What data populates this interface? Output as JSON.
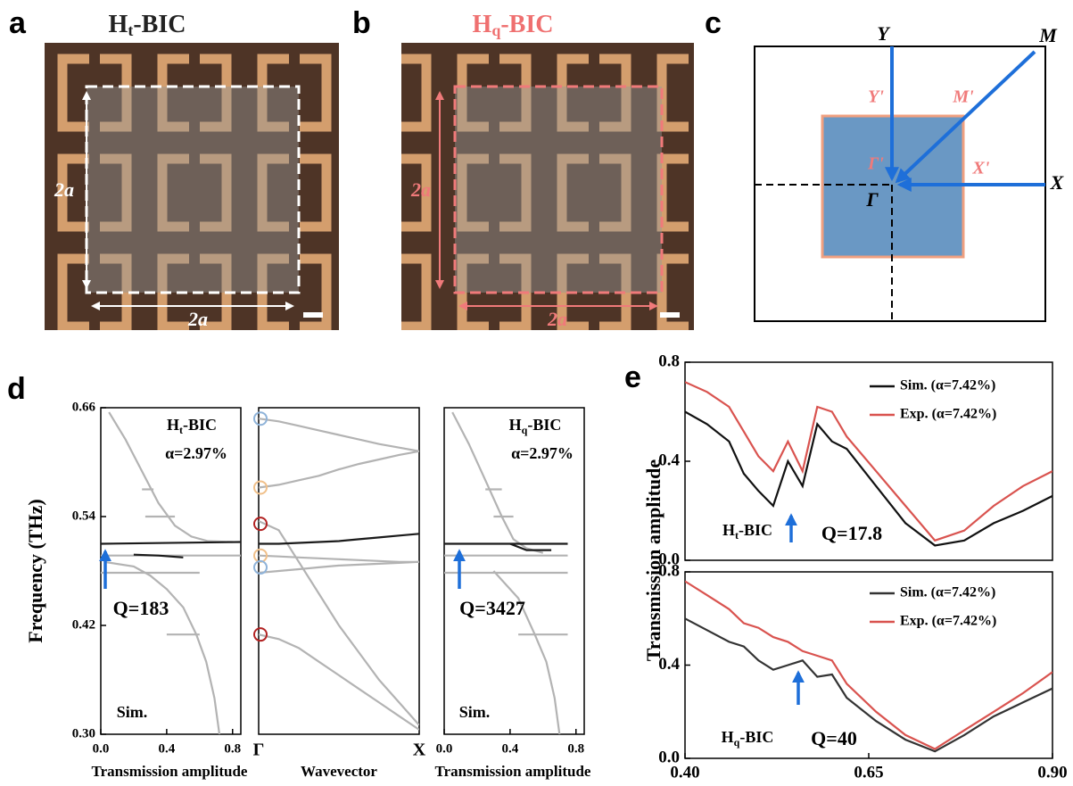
{
  "figure": {
    "panel_labels": [
      "a",
      "b",
      "c",
      "d",
      "e"
    ],
    "panel_a": {
      "title": [
        "H",
        "t",
        "-BIC"
      ],
      "dim_labels": [
        "2a",
        "2a"
      ]
    },
    "panel_b": {
      "title": [
        "H",
        "q",
        "-BIC"
      ],
      "dim_labels": [
        "2a",
        "2a"
      ]
    },
    "panel_c": {
      "points": [
        "Y",
        "M",
        "Y'",
        "M'",
        "Γ'",
        "X'",
        "X",
        "Γ"
      ]
    }
  },
  "chart_data": [
    {
      "type": "line",
      "ylabel": "Frequency (THz)",
      "xlabel": "Transmission amplitude",
      "xlim": [
        0,
        0.85
      ],
      "xticks": [
        {
          "value": 0,
          "label": "0.0"
        },
        0.4,
        0.8
      ],
      "ylim": [
        0.3,
        0.66
      ],
      "yticks": [
        {
          "value": 0.3,
          "label": "0.30"
        },
        0.42,
        0.54,
        0.66
      ],
      "title_parts": [
        "H",
        "t",
        "-BIC"
      ],
      "annotations": [
        "α=2.97%",
        "Q=183",
        "Sim."
      ],
      "series": [
        {
          "color": "#b3b3b3",
          "x": [
            0.05,
            0.15,
            0.25,
            0.35,
            0.45,
            0.55,
            0.65,
            0.8
          ],
          "values": [
            0.655,
            0.625,
            0.59,
            0.555,
            0.53,
            0.518,
            0.513,
            0.512
          ]
        },
        {
          "color": "#b3b3b3",
          "x": [
            0.25,
            0.32
          ],
          "values": [
            0.57,
            0.57
          ]
        },
        {
          "color": "#b3b3b3",
          "x": [
            0.27,
            0.45
          ],
          "values": [
            0.54,
            0.54
          ]
        },
        {
          "color": "#b3b3b3",
          "x": [
            0,
            0.85
          ],
          "values": [
            0.497,
            0.497
          ]
        },
        {
          "color": "#b3b3b3",
          "x": [
            0,
            0.6
          ],
          "values": [
            0.478,
            0.478
          ]
        },
        {
          "color": "#b3b3b3",
          "x": [
            0.4,
            0.6
          ],
          "values": [
            0.41,
            0.41
          ]
        },
        {
          "color": "#b3b3b3",
          "x": [
            0.02,
            0.2,
            0.3,
            0.4,
            0.5,
            0.58,
            0.64,
            0.69,
            0.72
          ],
          "values": [
            0.49,
            0.485,
            0.475,
            0.46,
            0.44,
            0.41,
            0.38,
            0.34,
            0.3
          ]
        },
        {
          "color": "#1a1a1a",
          "x": [
            0,
            0.85
          ],
          "values": [
            0.51,
            0.512
          ]
        },
        {
          "color": "#1a1a1a",
          "x": [
            0.2,
            0.35,
            0.5
          ],
          "values": [
            0.498,
            0.497,
            0.495
          ]
        }
      ]
    },
    {
      "type": "line",
      "xlabel": "Wavevector",
      "categories": [
        "Γ",
        null,
        null,
        null,
        null,
        null,
        null,
        null,
        "X"
      ],
      "ylim": [
        0.3,
        0.66
      ],
      "series": [
        {
          "color": "#b3b3b3",
          "values": [
            0.41,
            0.405,
            0.395,
            0.38,
            0.365,
            0.35,
            0.335,
            0.32,
            0.305
          ]
        },
        {
          "color": "#b3b3b3",
          "values": [
            0.535,
            0.525,
            0.49,
            0.455,
            0.42,
            0.39,
            0.36,
            0.335,
            0.31
          ]
        },
        {
          "color": "#b3b3b3",
          "values": [
            0.478,
            0.48,
            0.482,
            0.484,
            0.486,
            0.487,
            0.488,
            0.489,
            0.49
          ]
        },
        {
          "color": "#b3b3b3",
          "values": [
            0.497,
            0.496,
            0.495,
            0.494,
            0.493,
            0.492,
            0.491,
            0.49,
            0.49
          ]
        },
        {
          "color": "#b3b3b3",
          "values": [
            0.572,
            0.575,
            0.58,
            0.585,
            0.592,
            0.598,
            0.603,
            0.608,
            0.612
          ]
        },
        {
          "color": "#b3b3b3",
          "values": [
            0.648,
            0.645,
            0.64,
            0.635,
            0.63,
            0.625,
            0.62,
            0.616,
            0.612
          ]
        },
        {
          "color": "#1a1a1a",
          "values": [
            0.51,
            0.51,
            0.511,
            0.512,
            0.513,
            0.515,
            0.517,
            0.519,
            0.521
          ]
        }
      ],
      "markers": {
        "values": [
          0.648,
          0.572,
          0.532,
          0.497,
          0.484,
          0.41
        ],
        "colors": [
          "#8fb3d9",
          "#f0c08a",
          "#b22222",
          "#f0c08a",
          "#8fb3d9",
          "#b22222"
        ]
      }
    },
    {
      "type": "line",
      "xlabel": "Transmission amplitude",
      "xlim": [
        0,
        0.85
      ],
      "xticks": [
        {
          "value": 0,
          "label": "0.0"
        },
        0.4,
        0.8
      ],
      "ylim": [
        0.3,
        0.66
      ],
      "title_parts": [
        "H",
        "q",
        "-BIC"
      ],
      "annotations": [
        "α=2.97%",
        "Q=3427",
        "Sim."
      ],
      "series": [
        {
          "color": "#b3b3b3",
          "x": [
            0.05,
            0.15,
            0.25,
            0.35,
            0.42,
            0.5,
            0.6
          ],
          "values": [
            0.655,
            0.62,
            0.58,
            0.54,
            0.515,
            0.505,
            0.5
          ]
        },
        {
          "color": "#b3b3b3",
          "x": [
            0.25,
            0.35
          ],
          "values": [
            0.57,
            0.57
          ]
        },
        {
          "color": "#b3b3b3",
          "x": [
            0.3,
            0.42
          ],
          "values": [
            0.54,
            0.54
          ]
        },
        {
          "color": "#b3b3b3",
          "x": [
            0,
            0.75
          ],
          "values": [
            0.497,
            0.497
          ]
        },
        {
          "color": "#b3b3b3",
          "x": [
            0,
            0.75
          ],
          "values": [
            0.478,
            0.478
          ]
        },
        {
          "color": "#b3b3b3",
          "x": [
            0.45,
            0.75
          ],
          "values": [
            0.41,
            0.41
          ]
        },
        {
          "color": "#b3b3b3",
          "x": [
            0.3,
            0.45,
            0.55,
            0.62,
            0.67,
            0.7
          ],
          "values": [
            0.48,
            0.45,
            0.41,
            0.38,
            0.34,
            0.3
          ]
        },
        {
          "color": "#1a1a1a",
          "x": [
            0,
            0.4,
            0.75
          ],
          "values": [
            0.51,
            0.51,
            0.51
          ]
        },
        {
          "color": "#1a1a1a",
          "x": [
            0.4,
            0.5,
            0.65
          ],
          "values": [
            0.51,
            0.503,
            0.503
          ]
        }
      ]
    },
    {
      "type": "line",
      "ylabel": "Transmission amplitude",
      "xlim": [
        0.4,
        0.9
      ],
      "ylim": [
        0,
        0.8
      ],
      "yticks": [
        {
          "value": 0,
          "label": "0.0"
        },
        0.4,
        0.8
      ],
      "title_parts": [
        "H",
        "t",
        "-BIC"
      ],
      "annotations": [
        "Q=17.8"
      ],
      "series": [
        {
          "name": "Sim. (α=7.42%)",
          "color": "#111111",
          "x": [
            0.4,
            0.43,
            0.46,
            0.48,
            0.5,
            0.52,
            0.54,
            0.56,
            0.58,
            0.6,
            0.62,
            0.66,
            0.7,
            0.74,
            0.78,
            0.82,
            0.86,
            0.9
          ],
          "values": [
            0.6,
            0.55,
            0.48,
            0.35,
            0.28,
            0.22,
            0.4,
            0.3,
            0.55,
            0.48,
            0.45,
            0.3,
            0.15,
            0.06,
            0.08,
            0.15,
            0.2,
            0.26
          ]
        },
        {
          "name": "Exp. (α=7.42%)",
          "color": "#d9534f",
          "x": [
            0.4,
            0.43,
            0.46,
            0.48,
            0.5,
            0.52,
            0.54,
            0.56,
            0.58,
            0.6,
            0.62,
            0.66,
            0.7,
            0.74,
            0.78,
            0.82,
            0.86,
            0.9
          ],
          "values": [
            0.72,
            0.68,
            0.62,
            0.52,
            0.42,
            0.36,
            0.48,
            0.36,
            0.62,
            0.6,
            0.5,
            0.36,
            0.22,
            0.08,
            0.12,
            0.22,
            0.3,
            0.36
          ]
        }
      ]
    },
    {
      "type": "line",
      "xlim": [
        0.4,
        0.9
      ],
      "xticks": [
        {
          "value": 0.4,
          "label": "0.40"
        },
        {
          "value": 0.65,
          "label": "0.65"
        },
        {
          "value": 0.9,
          "label": "0.90"
        }
      ],
      "ylim": [
        0,
        0.8
      ],
      "yticks": [
        {
          "value": 0,
          "label": "0.0"
        },
        0.4,
        0.8
      ],
      "title_parts": [
        "H",
        "q",
        "-BIC"
      ],
      "annotations": [
        "Q=40"
      ],
      "series": [
        {
          "name": "Sim. (α=7.42%)",
          "color": "#333333",
          "x": [
            0.4,
            0.43,
            0.46,
            0.48,
            0.5,
            0.52,
            0.54,
            0.56,
            0.58,
            0.6,
            0.62,
            0.66,
            0.7,
            0.74,
            0.78,
            0.82,
            0.86,
            0.9
          ],
          "values": [
            0.6,
            0.55,
            0.5,
            0.48,
            0.42,
            0.38,
            0.4,
            0.42,
            0.35,
            0.36,
            0.26,
            0.16,
            0.08,
            0.03,
            0.1,
            0.18,
            0.24,
            0.3
          ]
        },
        {
          "name": "Exp. (α=7.42%)",
          "color": "#d9534f",
          "x": [
            0.4,
            0.43,
            0.46,
            0.48,
            0.5,
            0.52,
            0.54,
            0.56,
            0.58,
            0.6,
            0.62,
            0.66,
            0.7,
            0.74,
            0.78,
            0.82,
            0.86,
            0.9
          ],
          "values": [
            0.76,
            0.7,
            0.64,
            0.58,
            0.56,
            0.52,
            0.5,
            0.46,
            0.44,
            0.42,
            0.32,
            0.2,
            0.1,
            0.04,
            0.12,
            0.2,
            0.28,
            0.37
          ]
        }
      ]
    }
  ]
}
